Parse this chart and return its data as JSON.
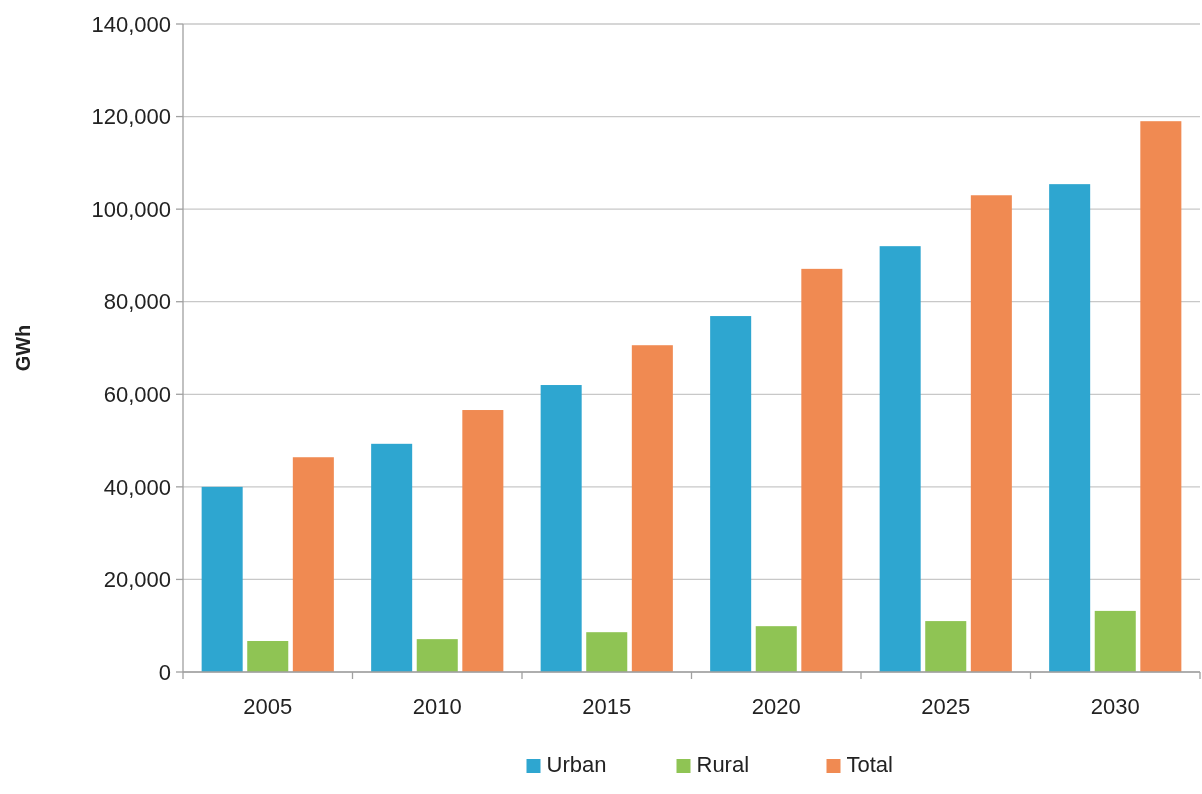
{
  "chart_data": {
    "type": "bar",
    "ylabel": "GWh",
    "categories": [
      "2005",
      "2010",
      "2015",
      "2020",
      "2025",
      "2030"
    ],
    "series": [
      {
        "name": "Urban",
        "color": "#2ea6d0",
        "values": [
          40000,
          49300,
          62000,
          76900,
          92000,
          105400
        ]
      },
      {
        "name": "Rural",
        "color": "#8fc454",
        "values": [
          6700,
          7100,
          8600,
          9900,
          11000,
          13200
        ]
      },
      {
        "name": "Total",
        "color": "#f08a52",
        "values": [
          46400,
          56600,
          70600,
          87100,
          103000,
          119000
        ]
      }
    ],
    "ylim": [
      0,
      140000
    ],
    "yticks": [
      {
        "value": 0,
        "label": "0"
      },
      {
        "value": 20000,
        "label": "20,000"
      },
      {
        "value": 40000,
        "label": "40,000"
      },
      {
        "value": 60000,
        "label": "60,000"
      },
      {
        "value": 80000,
        "label": "80,000"
      },
      {
        "value": 100000,
        "label": "100,000"
      },
      {
        "value": 120000,
        "label": "120,000"
      },
      {
        "value": 140000,
        "label": "140,000"
      }
    ],
    "grid": "y",
    "legend": "bottom"
  }
}
